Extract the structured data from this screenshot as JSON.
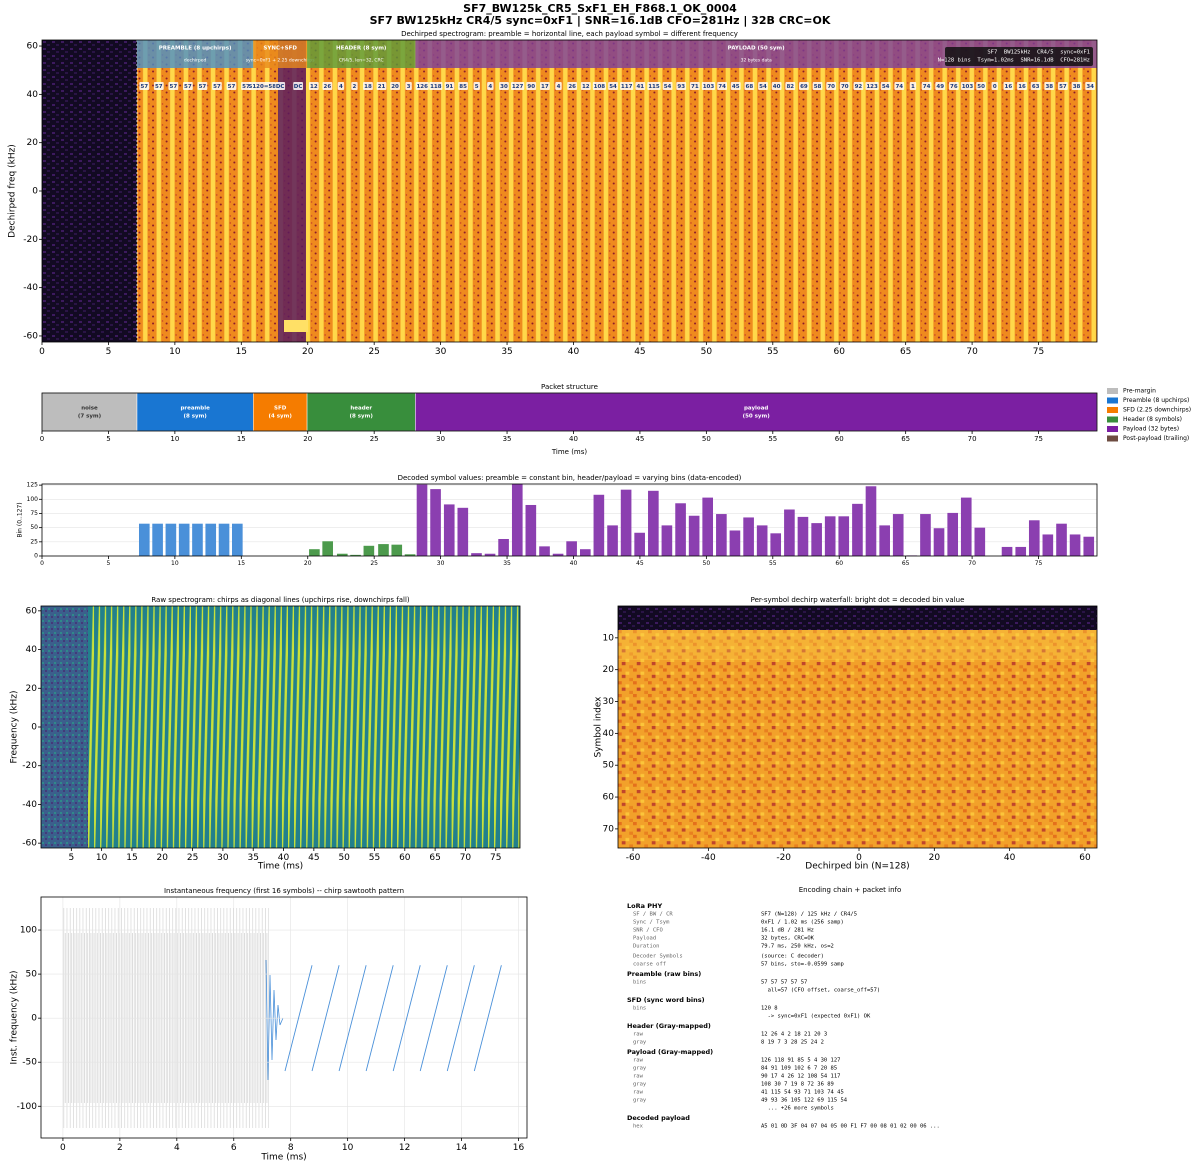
{
  "figure": {
    "title": "SF7_BW125k_CR5_SxF1_EH_F868.1_OK_0004",
    "subtitle": "SF7 BW125kHz CR4/5 sync=0xF1 | SNR=16.1dB CFO=281Hz | 32B CRC=OK"
  },
  "chart_data": [
    {
      "type": "heatmap",
      "title": "Dechirped spectrogram: preamble = horizontal line, each payload symbol = different frequency",
      "ylabel": "Dechirped freq (kHz)",
      "xlim": [
        0,
        79.4
      ],
      "xticks": [
        0,
        5,
        10,
        15,
        20,
        25,
        30,
        35,
        40,
        45,
        50,
        55,
        60,
        65,
        70,
        75
      ],
      "ylim": [
        -62.5,
        62.5
      ],
      "yticks": [
        -60,
        -40,
        -20,
        0,
        20,
        40,
        60
      ],
      "regions": [
        {
          "label": "PREAMBLE (8 upchirps)",
          "note": "dechirped",
          "start": 7.15,
          "end": 15.9,
          "color": "#4a90c8"
        },
        {
          "label": "SYNC+SFD",
          "note": "sync=0xF1 + 2.25 downchirps",
          "start": 15.9,
          "end": 19.95,
          "color": "#e8891c"
        },
        {
          "label": "HEADER (8 sym)",
          "note": "CR4/5, len=32, CRC",
          "start": 19.95,
          "end": 28.1,
          "color": "#5a9a3a"
        },
        {
          "label": "PAYLOAD (50 sym)",
          "note": "32 bytes data",
          "start": 28.1,
          "end": 79.4,
          "color": "#7b3d9b"
        }
      ],
      "symbol_labels": [
        [
          57,
          57,
          57,
          57,
          57,
          57,
          57,
          57
        ],
        [
          "S120=58",
          "DC",
          "DC"
        ],
        [
          12,
          26,
          4,
          2,
          18,
          21,
          20,
          3
        ],
        [
          126,
          118,
          91,
          85,
          5,
          4,
          30,
          127,
          90,
          17,
          4,
          26,
          12,
          108,
          54,
          117,
          41,
          115,
          54,
          93,
          71,
          103,
          74,
          45,
          68,
          54,
          40,
          82,
          69,
          58,
          70,
          70,
          92,
          123,
          54,
          74,
          1,
          74,
          49,
          76,
          103,
          50,
          0,
          16,
          16,
          63,
          38,
          57,
          38,
          34
        ]
      ],
      "info_box": [
        "SF7  BW125kHz  CR4/5  sync=0xF1",
        "N=128 bins  Tsym=1.02ms  SNR=16.1dB  CFO=281Hz"
      ]
    },
    {
      "type": "timeline",
      "title": "Packet structure",
      "xlabel": "Time (ms)",
      "xlim": [
        0,
        79.4
      ],
      "xticks": [
        0,
        5,
        10,
        15,
        20,
        25,
        30,
        35,
        40,
        45,
        50,
        55,
        60,
        65,
        70,
        75
      ],
      "segments": [
        {
          "name": "noise",
          "detail": "(7 sym)",
          "start": 0,
          "end": 7.15,
          "color": "#bdbdbd"
        },
        {
          "name": "preamble",
          "detail": "(8 sym)",
          "start": 7.15,
          "end": 15.9,
          "color": "#1976d2"
        },
        {
          "name": "SFD",
          "detail": "(4 sym)",
          "start": 15.9,
          "end": 19.95,
          "color": "#f57c00"
        },
        {
          "name": "header",
          "detail": "(8 sym)",
          "start": 19.95,
          "end": 28.1,
          "color": "#388e3c"
        },
        {
          "name": "payload",
          "detail": "(50 sym)",
          "start": 28.1,
          "end": 79.4,
          "color": "#7b1fa2"
        }
      ],
      "legend": [
        {
          "name": "Pre-margin",
          "color": "#bdbdbd"
        },
        {
          "name": "Preamble (8 upchirps)",
          "color": "#1976d2"
        },
        {
          "name": "SFD (2.25 downchirps)",
          "color": "#f57c00"
        },
        {
          "name": "Header (8 symbols)",
          "color": "#388e3c"
        },
        {
          "name": "Payload (32 bytes)",
          "color": "#7b1fa2"
        },
        {
          "name": "Post-payload (trailing)",
          "color": "#6d4c41"
        }
      ]
    },
    {
      "type": "bar",
      "title": "Decoded symbol values: preamble = constant bin, header/payload = varying bins (data-encoded)",
      "ylabel": "Bin (0..127)",
      "xlim": [
        0,
        79.4
      ],
      "xticks": [
        0,
        5,
        10,
        15,
        20,
        25,
        30,
        35,
        40,
        45,
        50,
        55,
        60,
        65,
        70,
        75
      ],
      "ylim": [
        0,
        127
      ],
      "yticks": [
        0,
        25,
        50,
        75,
        100,
        125
      ],
      "grid": "y",
      "series": [
        {
          "color": "#4a90d9",
          "x": [
            7.7,
            8.7,
            9.7,
            10.7,
            11.7,
            12.7,
            13.7,
            14.7
          ],
          "values": [
            57,
            57,
            57,
            57,
            57,
            57,
            57,
            57
          ]
        },
        {
          "color": "#4c9a4c",
          "x": [
            20.5,
            21.5,
            22.6,
            23.6,
            24.6,
            25.7,
            26.7,
            27.7
          ],
          "values": [
            12,
            26,
            4,
            2,
            18,
            21,
            20,
            3
          ]
        },
        {
          "color": "#8b3fb0",
          "x": [
            28.6,
            29.62,
            30.65,
            31.67,
            32.7,
            33.72,
            34.74,
            35.77,
            36.79,
            37.82,
            38.84,
            39.86,
            40.89,
            41.91,
            42.94,
            43.96,
            44.98,
            46.01,
            47.03,
            48.06,
            49.08,
            50.1,
            51.13,
            52.15,
            53.18,
            54.2,
            55.22,
            56.25,
            57.27,
            58.3,
            59.32,
            60.34,
            61.37,
            62.39,
            63.42,
            64.44,
            65.46,
            66.49,
            67.51,
            68.54,
            69.56,
            70.58,
            71.61,
            72.63,
            73.66,
            74.68,
            75.7,
            76.73,
            77.75,
            78.78
          ],
          "values": [
            126,
            118,
            91,
            85,
            5,
            4,
            30,
            127,
            90,
            17,
            4,
            26,
            12,
            108,
            54,
            117,
            41,
            115,
            54,
            93,
            71,
            103,
            74,
            45,
            68,
            54,
            40,
            82,
            69,
            58,
            70,
            70,
            92,
            123,
            54,
            74,
            1,
            74,
            49,
            76,
            103,
            50,
            0,
            16,
            16,
            63,
            38,
            57,
            38,
            34
          ]
        }
      ]
    },
    {
      "type": "heatmap",
      "title": "Raw spectrogram: chirps as diagonal lines (upchirps rise, downchirps fall)",
      "xlabel": "Time (ms)",
      "ylabel": "Frequency (kHz)",
      "xlim": [
        0,
        79
      ],
      "xticks": [
        5,
        10,
        15,
        20,
        25,
        30,
        35,
        40,
        45,
        50,
        55,
        60,
        65,
        70,
        75
      ],
      "ylim": [
        -62.5,
        62.5
      ],
      "yticks": [
        -60,
        -40,
        -20,
        0,
        20,
        40,
        60
      ]
    },
    {
      "type": "heatmap",
      "title": "Per-symbol dechirp waterfall: bright dot = decoded bin value",
      "xlabel": "Dechirped bin (N=128)",
      "ylabel": "Symbol index",
      "xlim": [
        -64,
        63.2
      ],
      "xticks": [
        -60,
        -40,
        -20,
        0,
        20,
        40,
        60
      ],
      "ylim": [
        76,
        0
      ],
      "yticks": [
        10,
        20,
        30,
        40,
        50,
        60,
        70
      ]
    },
    {
      "type": "line",
      "title": "Instantaneous frequency (first 16 symbols) -- chirp sawtooth pattern",
      "xlabel": "Time (ms)",
      "ylabel": "Inst. frequency (kHz)",
      "xlim": [
        -0.77,
        16.3
      ],
      "xticks": [
        0,
        2,
        4,
        6,
        8,
        10,
        12,
        14,
        16
      ],
      "ylim": [
        -136,
        137.5
      ],
      "yticks": [
        -100,
        -50,
        0,
        50,
        100
      ],
      "grid": "both",
      "series": [
        {
          "color": "#4a90d9",
          "x": [
            7.8,
            8.75,
            8.75,
            8.75,
            9.7,
            9.7,
            9.7,
            10.65,
            10.65,
            10.65,
            11.6,
            11.6,
            11.6,
            12.55,
            12.55,
            12.55,
            13.5,
            13.5,
            13.5,
            14.45,
            14.45,
            14.45,
            15.4
          ],
          "values": [
            -60,
            60,
            null,
            -60,
            60,
            null,
            -60,
            60,
            null,
            -60,
            60,
            null,
            -60,
            60,
            null,
            -60,
            60,
            null,
            -60,
            60,
            null,
            -60,
            60
          ]
        }
      ]
    }
  ],
  "info_panel": {
    "title": "Encoding chain + packet info",
    "sections": [
      {
        "heading": "LoRa PHY",
        "rows": [
          {
            "key": "SF / BW / CR",
            "value": [
              "SF7 (N=128) / 125 kHz / CR4/5"
            ]
          },
          {
            "key": "Sync / Tsym",
            "value": [
              "0xF1 / 1.02 ms (256 samp)"
            ]
          },
          {
            "key": "SNR / CFO",
            "value": [
              "16.1 dB / 281 Hz"
            ]
          },
          {
            "key": "Payload",
            "value": [
              "32 bytes, CRC=OK"
            ]
          },
          {
            "key": "Duration",
            "value": [
              "79.7 ms, 250 kHz, os=2"
            ]
          }
        ]
      },
      {
        "rows": [
          {
            "key": "Decoder Symbols",
            "value": [
              "(source: C decoder)"
            ]
          },
          {
            "key": "coarse off",
            "value": [
              "57 bins, sto=-0.0599 samp"
            ]
          }
        ]
      },
      {
        "heading": "Preamble (raw bins)",
        "rows": [
          {
            "key": "bins",
            "value": [
              "57 57 57 57 57",
              "  all=57 (CFO offset, coarse_off=57)"
            ]
          }
        ]
      },
      {
        "heading": "SFD (sync word bins)",
        "rows": [
          {
            "key": "bins",
            "value": [
              "120 8",
              "  -> sync=0xF1 (expected 0xF1) OK"
            ]
          }
        ]
      },
      {
        "heading": "Header (Gray-mapped)",
        "rows": [
          {
            "key": "raw",
            "value": [
              "12 26 4 2 18 21 20 3"
            ]
          },
          {
            "key": "gray",
            "value": [
              "8 19 7 3 28 25 24 2"
            ]
          }
        ]
      },
      {
        "heading": "Payload (Gray-mapped)",
        "rows": [
          {
            "key": "raw",
            "value": [
              "126 118 91 85 5 4 30 127"
            ]
          },
          {
            "key": "gray",
            "value": [
              "84 91 109 102 6 7 20 85"
            ]
          },
          {
            "key": "raw",
            "value": [
              "90 17 4 26 12 108 54 117"
            ]
          },
          {
            "key": "gray",
            "value": [
              "108 30 7 19 8 72 36 89"
            ]
          },
          {
            "key": "raw",
            "value": [
              "41 115 54 93 71 103 74 45"
            ]
          },
          {
            "key": "gray",
            "value": [
              "49 93 36 105 122 69 115 54"
            ]
          },
          {
            "value": [
              "  ... +26 more symbols"
            ]
          }
        ]
      },
      {
        "heading": "Decoded payload",
        "rows": [
          {
            "key": "hex",
            "value": [
              "A5 01 0D 3F 04 07 04 05 00 F1 F7 00 08 01 02 00 06 ..."
            ]
          }
        ]
      }
    ]
  }
}
